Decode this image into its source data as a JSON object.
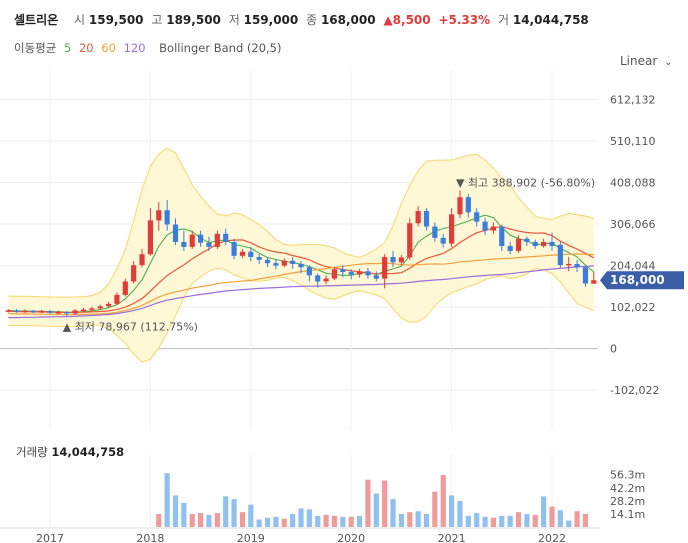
{
  "header": {
    "name": "셀트리온",
    "open_label": "시",
    "open": "159,500",
    "high_label": "고",
    "high": "189,500",
    "low_label": "저",
    "low": "159,000",
    "close_label": "종",
    "close": "168,000",
    "change": "8,500",
    "change_pct": "+5.33%",
    "volume_label": "거",
    "volume": "14,044,758"
  },
  "legend": {
    "ma_label": "이동평균",
    "ma": [
      {
        "label": "5",
        "color": "#4caf50"
      },
      {
        "label": "20",
        "color": "#e8573a"
      },
      {
        "label": "60",
        "color": "#f2a23c"
      },
      {
        "label": "120",
        "color": "#9b6ee0"
      }
    ],
    "bollinger": "Bollinger Band (20,5)"
  },
  "scale_label": "Linear",
  "current_price": "168,000",
  "high_marker": "최고 388,902 (-56.80%)",
  "low_marker": "최저 78,967 (112.75%)",
  "volume_header": {
    "label": "거래량",
    "value": "14,044,758"
  },
  "colors": {
    "up": "#e03c3c",
    "down": "#3b7ddd",
    "band_fill": "#fff8d6",
    "band_line": "#f5d66a",
    "price_tag": "#3a5ea8"
  },
  "chart_data": {
    "type": "candlestick",
    "y_ticks": [
      "612,132",
      "510,110",
      "408,088",
      "306,066",
      "204,044",
      "102,022",
      "0",
      "-102,022"
    ],
    "y_tick_values": [
      612132,
      510110,
      408088,
      306066,
      204044,
      102022,
      0,
      -102022
    ],
    "ylim": [
      -200000,
      660000
    ],
    "x_ticks": [
      "2017",
      "2018",
      "2019",
      "2020",
      "2021",
      "2022"
    ],
    "x_tick_positions": [
      0,
      12,
      24,
      36,
      48,
      60
    ],
    "x_range": [
      -5.5,
      65.5
    ],
    "candles": [
      {
        "t": -5,
        "o": 92000,
        "c": 94000,
        "h": 97000,
        "l": 89000
      },
      {
        "t": -4,
        "o": 94000,
        "c": 91000,
        "h": 97000,
        "l": 88000
      },
      {
        "t": -3,
        "o": 91000,
        "c": 93000,
        "h": 96000,
        "l": 88000
      },
      {
        "t": -2,
        "o": 93000,
        "c": 90000,
        "h": 95000,
        "l": 87000
      },
      {
        "t": -1,
        "o": 90000,
        "c": 92000,
        "h": 95000,
        "l": 87000
      },
      {
        "t": 0,
        "o": 92000,
        "c": 88000,
        "h": 95000,
        "l": 85000
      },
      {
        "t": 1,
        "o": 88000,
        "c": 90000,
        "h": 93000,
        "l": 84000
      },
      {
        "t": 2,
        "o": 90000,
        "c": 86000,
        "h": 92000,
        "l": 79000
      },
      {
        "t": 3,
        "o": 86000,
        "c": 94000,
        "h": 97000,
        "l": 83000
      },
      {
        "t": 4,
        "o": 94000,
        "c": 96000,
        "h": 100000,
        "l": 90000
      },
      {
        "t": 5,
        "o": 96000,
        "c": 99000,
        "h": 103000,
        "l": 93000
      },
      {
        "t": 6,
        "o": 99000,
        "c": 104000,
        "h": 108000,
        "l": 96000
      },
      {
        "t": 7,
        "o": 104000,
        "c": 110000,
        "h": 115000,
        "l": 100000
      },
      {
        "t": 8,
        "o": 110000,
        "c": 132000,
        "h": 138000,
        "l": 107000
      },
      {
        "t": 9,
        "o": 132000,
        "c": 165000,
        "h": 172000,
        "l": 128000
      },
      {
        "t": 10,
        "o": 165000,
        "c": 205000,
        "h": 215000,
        "l": 160000
      },
      {
        "t": 11,
        "o": 205000,
        "c": 232000,
        "h": 245000,
        "l": 200000
      },
      {
        "t": 12,
        "o": 232000,
        "c": 315000,
        "h": 345000,
        "l": 228000
      },
      {
        "t": 13,
        "o": 315000,
        "c": 340000,
        "h": 360000,
        "l": 290000
      },
      {
        "t": 14,
        "o": 340000,
        "c": 305000,
        "h": 365000,
        "l": 290000
      },
      {
        "t": 15,
        "o": 305000,
        "c": 262000,
        "h": 320000,
        "l": 255000
      },
      {
        "t": 16,
        "o": 262000,
        "c": 250000,
        "h": 290000,
        "l": 240000
      },
      {
        "t": 17,
        "o": 250000,
        "c": 280000,
        "h": 290000,
        "l": 245000
      },
      {
        "t": 18,
        "o": 280000,
        "c": 260000,
        "h": 290000,
        "l": 250000
      },
      {
        "t": 19,
        "o": 260000,
        "c": 250000,
        "h": 275000,
        "l": 240000
      },
      {
        "t": 20,
        "o": 250000,
        "c": 282000,
        "h": 290000,
        "l": 245000
      },
      {
        "t": 21,
        "o": 282000,
        "c": 262000,
        "h": 295000,
        "l": 255000
      },
      {
        "t": 22,
        "o": 262000,
        "c": 228000,
        "h": 270000,
        "l": 220000
      },
      {
        "t": 23,
        "o": 228000,
        "c": 238000,
        "h": 245000,
        "l": 222000
      },
      {
        "t": 24,
        "o": 238000,
        "c": 225000,
        "h": 250000,
        "l": 215000
      },
      {
        "t": 25,
        "o": 225000,
        "c": 218000,
        "h": 232000,
        "l": 208000
      },
      {
        "t": 26,
        "o": 218000,
        "c": 210000,
        "h": 225000,
        "l": 200000
      },
      {
        "t": 27,
        "o": 210000,
        "c": 204000,
        "h": 220000,
        "l": 195000
      },
      {
        "t": 28,
        "o": 204000,
        "c": 216000,
        "h": 222000,
        "l": 200000
      },
      {
        "t": 29,
        "o": 216000,
        "c": 208000,
        "h": 225000,
        "l": 196000
      },
      {
        "t": 30,
        "o": 208000,
        "c": 200000,
        "h": 215000,
        "l": 185000
      },
      {
        "t": 31,
        "o": 200000,
        "c": 180000,
        "h": 205000,
        "l": 165000
      },
      {
        "t": 32,
        "o": 180000,
        "c": 165000,
        "h": 185000,
        "l": 150000
      },
      {
        "t": 33,
        "o": 165000,
        "c": 172000,
        "h": 180000,
        "l": 158000
      },
      {
        "t": 34,
        "o": 172000,
        "c": 195000,
        "h": 200000,
        "l": 168000
      },
      {
        "t": 35,
        "o": 195000,
        "c": 188000,
        "h": 205000,
        "l": 175000
      },
      {
        "t": 36,
        "o": 188000,
        "c": 182000,
        "h": 195000,
        "l": 170000
      },
      {
        "t": 37,
        "o": 182000,
        "c": 190000,
        "h": 196000,
        "l": 175000
      },
      {
        "t": 38,
        "o": 190000,
        "c": 180000,
        "h": 198000,
        "l": 172000
      },
      {
        "t": 39,
        "o": 180000,
        "c": 172000,
        "h": 190000,
        "l": 165000
      },
      {
        "t": 40,
        "o": 172000,
        "c": 225000,
        "h": 232000,
        "l": 148000
      },
      {
        "t": 41,
        "o": 225000,
        "c": 212000,
        "h": 240000,
        "l": 200000
      },
      {
        "t": 42,
        "o": 212000,
        "c": 224000,
        "h": 230000,
        "l": 205000
      },
      {
        "t": 43,
        "o": 224000,
        "c": 308000,
        "h": 320000,
        "l": 218000
      },
      {
        "t": 44,
        "o": 308000,
        "c": 338000,
        "h": 350000,
        "l": 300000
      },
      {
        "t": 45,
        "o": 338000,
        "c": 300000,
        "h": 345000,
        "l": 290000
      },
      {
        "t": 46,
        "o": 300000,
        "c": 272000,
        "h": 310000,
        "l": 262000
      },
      {
        "t": 47,
        "o": 272000,
        "c": 258000,
        "h": 282000,
        "l": 248000
      },
      {
        "t": 48,
        "o": 258000,
        "c": 330000,
        "h": 345000,
        "l": 250000
      },
      {
        "t": 49,
        "o": 330000,
        "c": 372000,
        "h": 388902,
        "l": 320000
      },
      {
        "t": 50,
        "o": 372000,
        "c": 335000,
        "h": 380000,
        "l": 322000
      },
      {
        "t": 51,
        "o": 335000,
        "c": 312000,
        "h": 345000,
        "l": 300000
      },
      {
        "t": 52,
        "o": 312000,
        "c": 290000,
        "h": 322000,
        "l": 280000
      },
      {
        "t": 53,
        "o": 290000,
        "c": 300000,
        "h": 310000,
        "l": 282000
      },
      {
        "t": 54,
        "o": 300000,
        "c": 252000,
        "h": 305000,
        "l": 240000
      },
      {
        "t": 55,
        "o": 252000,
        "c": 240000,
        "h": 262000,
        "l": 232000
      },
      {
        "t": 56,
        "o": 240000,
        "c": 270000,
        "h": 278000,
        "l": 235000
      },
      {
        "t": 57,
        "o": 270000,
        "c": 262000,
        "h": 275000,
        "l": 252000
      },
      {
        "t": 58,
        "o": 262000,
        "c": 252000,
        "h": 268000,
        "l": 245000
      },
      {
        "t": 59,
        "o": 252000,
        "c": 262000,
        "h": 270000,
        "l": 248000
      },
      {
        "t": 60,
        "o": 262000,
        "c": 252000,
        "h": 285000,
        "l": 240000
      },
      {
        "t": 61,
        "o": 255000,
        "c": 205000,
        "h": 262000,
        "l": 198000
      },
      {
        "t": 62,
        "o": 205000,
        "c": 208000,
        "h": 225000,
        "l": 190000
      },
      {
        "t": 63,
        "o": 208000,
        "c": 200000,
        "h": 218000,
        "l": 188000
      },
      {
        "t": 64,
        "o": 200000,
        "c": 160000,
        "h": 205000,
        "l": 152000
      },
      {
        "t": 65,
        "o": 159500,
        "c": 168000,
        "h": 189500,
        "l": 159000
      }
    ],
    "volume": {
      "y_ticks": [
        "56.3m",
        "42.2m",
        "28.2m",
        "14.1m"
      ],
      "y_tick_values": [
        56300000,
        42200000,
        28200000,
        14100000
      ],
      "ylim": [
        0,
        70000000
      ],
      "values": [
        {
          "t": 13,
          "v": 14000000,
          "up": true
        },
        {
          "t": 14,
          "v": 58000000,
          "up": false
        },
        {
          "t": 15,
          "v": 34000000,
          "up": false
        },
        {
          "t": 16,
          "v": 26000000,
          "up": false
        },
        {
          "t": 17,
          "v": 14000000,
          "up": true
        },
        {
          "t": 18,
          "v": 15000000,
          "up": true
        },
        {
          "t": 19,
          "v": 13000000,
          "up": false
        },
        {
          "t": 20,
          "v": 15000000,
          "up": true
        },
        {
          "t": 21,
          "v": 33000000,
          "up": false
        },
        {
          "t": 22,
          "v": 30000000,
          "up": false
        },
        {
          "t": 23,
          "v": 16000000,
          "up": true
        },
        {
          "t": 24,
          "v": 24000000,
          "up": false
        },
        {
          "t": 25,
          "v": 8000000,
          "up": false
        },
        {
          "t": 26,
          "v": 10000000,
          "up": false
        },
        {
          "t": 27,
          "v": 11000000,
          "up": false
        },
        {
          "t": 28,
          "v": 9000000,
          "up": true
        },
        {
          "t": 29,
          "v": 14000000,
          "up": false
        },
        {
          "t": 30,
          "v": 20000000,
          "up": false
        },
        {
          "t": 31,
          "v": 19000000,
          "up": false
        },
        {
          "t": 32,
          "v": 12000000,
          "up": false
        },
        {
          "t": 33,
          "v": 13000000,
          "up": true
        },
        {
          "t": 34,
          "v": 12000000,
          "up": true
        },
        {
          "t": 35,
          "v": 11000000,
          "up": false
        },
        {
          "t": 36,
          "v": 11000000,
          "up": true
        },
        {
          "t": 37,
          "v": 12000000,
          "up": false
        },
        {
          "t": 38,
          "v": 51000000,
          "up": true
        },
        {
          "t": 39,
          "v": 36000000,
          "up": false
        },
        {
          "t": 40,
          "v": 50000000,
          "up": true
        },
        {
          "t": 41,
          "v": 30000000,
          "up": false
        },
        {
          "t": 42,
          "v": 14000000,
          "up": false
        },
        {
          "t": 43,
          "v": 16000000,
          "up": true
        },
        {
          "t": 44,
          "v": 17000000,
          "up": false
        },
        {
          "t": 45,
          "v": 14000000,
          "up": false
        },
        {
          "t": 46,
          "v": 38000000,
          "up": true
        },
        {
          "t": 47,
          "v": 56000000,
          "up": true
        },
        {
          "t": 48,
          "v": 34000000,
          "up": false
        },
        {
          "t": 49,
          "v": 28000000,
          "up": false
        },
        {
          "t": 50,
          "v": 12000000,
          "up": false
        },
        {
          "t": 51,
          "v": 15000000,
          "up": false
        },
        {
          "t": 52,
          "v": 11000000,
          "up": false
        },
        {
          "t": 53,
          "v": 10000000,
          "up": true
        },
        {
          "t": 54,
          "v": 12000000,
          "up": false
        },
        {
          "t": 55,
          "v": 12000000,
          "up": false
        },
        {
          "t": 56,
          "v": 16000000,
          "up": true
        },
        {
          "t": 57,
          "v": 14000000,
          "up": false
        },
        {
          "t": 58,
          "v": 13000000,
          "up": true
        },
        {
          "t": 59,
          "v": 33000000,
          "up": false
        },
        {
          "t": 60,
          "v": 22000000,
          "up": true
        },
        {
          "t": 61,
          "v": 18000000,
          "up": false
        },
        {
          "t": 62,
          "v": 7000000,
          "up": false
        },
        {
          "t": 63,
          "v": 17000000,
          "up": true
        },
        {
          "t": 64,
          "v": 14000000,
          "up": true
        }
      ]
    }
  }
}
